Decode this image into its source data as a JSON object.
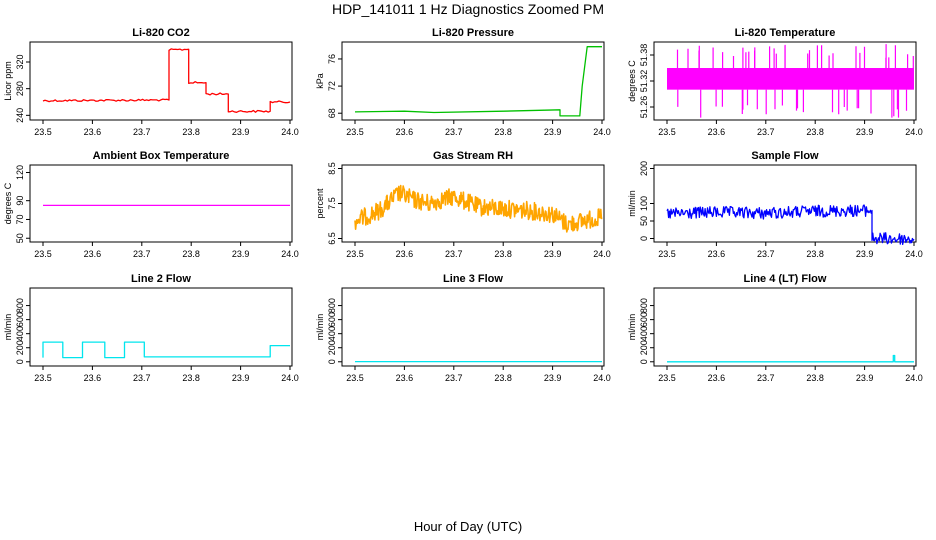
{
  "figure": {
    "title": "HDP_141011  1 Hz Diagnostics Zoomed PM",
    "xlabel": "Hour of Day (UTC)"
  },
  "chart_data": [
    {
      "type": "line",
      "title": "Li-820 CO2",
      "ylabel": "Licor ppm",
      "color": "#ff0000",
      "xlim": [
        23.5,
        24.0
      ],
      "ylim": [
        233,
        350
      ],
      "xticks": [
        "23.5",
        "23.6",
        "23.7",
        "23.8",
        "23.9",
        "24.0"
      ],
      "yticks": [
        240,
        280,
        320
      ],
      "series": [
        {
          "name": "CO2",
          "x": [
            23.5,
            23.755,
            23.755,
            23.795,
            23.795,
            23.83,
            23.83,
            23.875,
            23.875,
            23.96,
            23.96,
            24.0
          ],
          "y": [
            262,
            263,
            338,
            339,
            289,
            289,
            272,
            272,
            246,
            246,
            260,
            260
          ]
        }
      ]
    },
    {
      "type": "line",
      "title": "Li-820 Pressure",
      "ylabel": "kPa",
      "color": "#00c000",
      "xlim": [
        23.5,
        24.0
      ],
      "ylim": [
        67,
        78.5
      ],
      "xticks": [
        "23.5",
        "23.6",
        "23.7",
        "23.8",
        "23.9",
        "24.0"
      ],
      "yticks": [
        68,
        72,
        76
      ],
      "series": [
        {
          "name": "Pressure",
          "x": [
            23.5,
            23.6,
            23.66,
            23.8,
            23.915,
            23.915,
            23.955,
            23.96,
            23.97,
            24.0
          ],
          "y": [
            68.2,
            68.3,
            68.1,
            68.3,
            68.5,
            67.6,
            67.6,
            72,
            77.8,
            77.8
          ]
        }
      ]
    },
    {
      "type": "line",
      "title": "Li-820 Temperature",
      "ylabel": "degrees C",
      "color": "#ff00ff",
      "xlim": [
        23.5,
        24.0
      ],
      "ylim": [
        51.23,
        51.41
      ],
      "xticks": [
        "23.5",
        "23.6",
        "23.7",
        "23.8",
        "23.9",
        "24.0"
      ],
      "yticks": [
        51.26,
        51.32,
        51.38
      ],
      "series": [
        {
          "name": "Temperature",
          "band": [
            51.3,
            51.35
          ]
        }
      ]
    },
    {
      "type": "line",
      "title": "Ambient Box Temperature",
      "ylabel": "degrees C",
      "color": "#ff00ff",
      "xlim": [
        23.5,
        24.0
      ],
      "ylim": [
        46,
        128
      ],
      "xticks": [
        "23.5",
        "23.6",
        "23.7",
        "23.8",
        "23.9",
        "24.0"
      ],
      "yticks": [
        50,
        70,
        90,
        120
      ],
      "series": [
        {
          "name": "Box Temp",
          "x": [
            23.5,
            24.0
          ],
          "y": [
            85,
            85
          ]
        }
      ]
    },
    {
      "type": "line",
      "title": "Gas Stream RH",
      "ylabel": "percent",
      "color": "#ffa500",
      "xlim": [
        23.5,
        24.0
      ],
      "ylim": [
        6.4,
        8.6
      ],
      "xticks": [
        "23.5",
        "23.6",
        "23.7",
        "23.8",
        "23.9",
        "24.0"
      ],
      "yticks": [
        6.5,
        7.5,
        8.5
      ],
      "series": [
        {
          "name": "RH",
          "x": [
            23.5,
            23.55,
            23.59,
            23.62,
            23.65,
            23.7,
            23.75,
            23.8,
            23.85,
            23.9,
            23.93,
            23.96,
            24.0
          ],
          "y": [
            7.0,
            7.3,
            7.8,
            7.6,
            7.5,
            7.7,
            7.4,
            7.35,
            7.3,
            7.2,
            6.9,
            7.0,
            7.1
          ]
        }
      ]
    },
    {
      "type": "line",
      "title": "Sample Flow",
      "ylabel": "ml/min",
      "color": "#0000ff",
      "xlim": [
        23.5,
        24.0
      ],
      "ylim": [
        -10,
        210
      ],
      "xticks": [
        "23.5",
        "23.6",
        "23.7",
        "23.8",
        "23.9",
        "24.0"
      ],
      "yticks": [
        0,
        50,
        100,
        200
      ],
      "series": [
        {
          "name": "Flow",
          "x": [
            23.5,
            23.6,
            23.7,
            23.8,
            23.915,
            23.915,
            24.0
          ],
          "y": [
            70,
            75,
            72,
            78,
            80,
            0,
            -2
          ]
        }
      ]
    },
    {
      "type": "line",
      "title": "Line 2 Flow",
      "ylabel": "ml/min",
      "color": "#00e5ee",
      "xlim": [
        23.5,
        24.0
      ],
      "ylim": [
        -60,
        1050
      ],
      "xticks": [
        "23.5",
        "23.6",
        "23.7",
        "23.8",
        "23.9",
        "24.0"
      ],
      "yticks": [
        0,
        200,
        400,
        600,
        800
      ],
      "series": [
        {
          "name": "Line 2",
          "x": [
            23.5,
            23.5,
            23.54,
            23.54,
            23.58,
            23.58,
            23.625,
            23.625,
            23.665,
            23.665,
            23.705,
            23.705,
            23.96,
            23.96,
            24.0
          ],
          "y": [
            60,
            280,
            280,
            60,
            60,
            280,
            280,
            60,
            60,
            280,
            280,
            70,
            70,
            230,
            230
          ]
        }
      ]
    },
    {
      "type": "line",
      "title": "Line 3 Flow",
      "ylabel": "ml/min",
      "color": "#00e5ee",
      "xlim": [
        23.5,
        24.0
      ],
      "ylim": [
        -60,
        1050
      ],
      "xticks": [
        "23.5",
        "23.6",
        "23.7",
        "23.8",
        "23.9",
        "24.0"
      ],
      "yticks": [
        0,
        200,
        400,
        600,
        800
      ],
      "series": [
        {
          "name": "Line 3",
          "x": [
            23.5,
            24.0
          ],
          "y": [
            2,
            2
          ]
        }
      ]
    },
    {
      "type": "line",
      "title": "Line 4 (LT) Flow",
      "ylabel": "ml/min",
      "color": "#00e5ee",
      "xlim": [
        23.5,
        24.0
      ],
      "ylim": [
        -60,
        1050
      ],
      "xticks": [
        "23.5",
        "23.6",
        "23.7",
        "23.8",
        "23.9",
        "24.0"
      ],
      "yticks": [
        0,
        200,
        400,
        600,
        800
      ],
      "series": [
        {
          "name": "Line 4",
          "x": [
            23.5,
            23.958,
            23.958,
            23.961,
            23.961,
            24.0
          ],
          "y": [
            0,
            0,
            90,
            90,
            0,
            0
          ]
        }
      ]
    }
  ]
}
